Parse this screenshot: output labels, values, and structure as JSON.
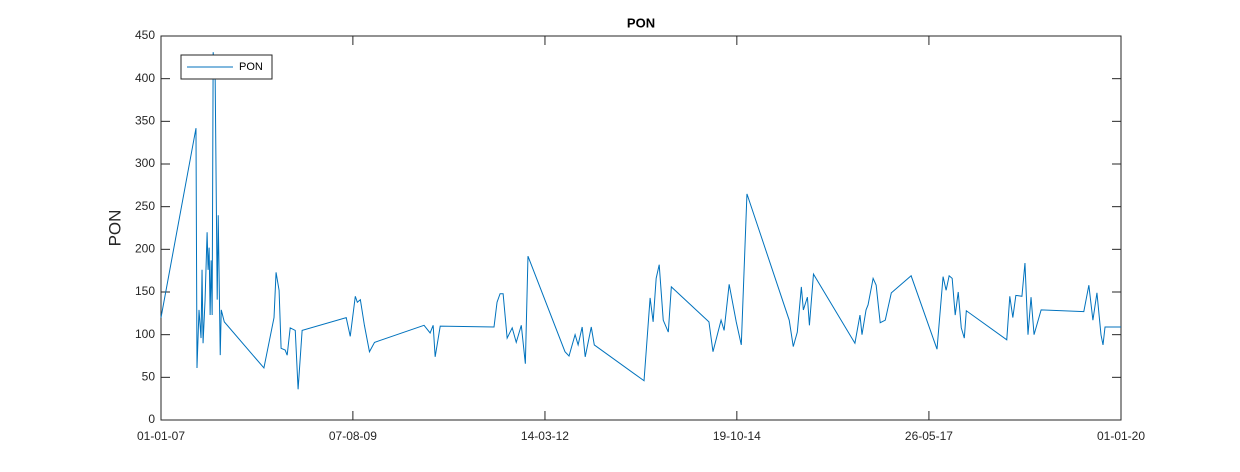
{
  "chart_data": {
    "type": "line",
    "title": "PON",
    "y_label": "PON",
    "x": [
      "2007-01-01",
      "2007-06-23",
      "2007-06-28",
      "2007-07-08",
      "2007-07-18",
      "2007-07-23",
      "2007-07-28",
      "2007-08-07",
      "2007-08-17",
      "2007-08-22",
      "2007-08-27",
      "2007-09-01",
      "2007-09-06",
      "2007-09-11",
      "2007-09-16",
      "2007-09-26",
      "2007-10-06",
      "2007-10-11",
      "2007-10-21",
      "2007-10-26",
      "2007-11-10",
      "2008-05-24",
      "2008-07-13",
      "2008-07-23",
      "2008-08-07",
      "2008-08-17",
      "2008-09-06",
      "2008-09-16",
      "2008-10-01",
      "2008-10-26",
      "2008-11-09",
      "2008-11-29",
      "2009-07-05",
      "2009-07-25",
      "2009-08-19",
      "2009-08-29",
      "2009-09-13",
      "2009-10-03",
      "2009-10-28",
      "2009-11-22",
      "2010-07-25",
      "2010-08-24",
      "2010-09-08",
      "2010-09-18",
      "2010-10-13",
      "2011-07-06",
      "2011-07-21",
      "2011-08-05",
      "2011-08-20",
      "2011-09-09",
      "2011-10-04",
      "2011-10-24",
      "2011-11-18",
      "2011-12-08",
      "2011-12-21",
      "2012-06-21",
      "2012-07-11",
      "2012-08-10",
      "2012-08-25",
      "2012-09-14",
      "2012-09-29",
      "2012-10-29",
      "2012-11-13",
      "2013-07-17",
      "2013-08-16",
      "2013-08-31",
      "2013-09-15",
      "2013-09-30",
      "2013-10-20",
      "2013-11-14",
      "2013-11-29",
      "2014-06-03",
      "2014-06-23",
      "2014-08-02",
      "2014-08-17",
      "2014-09-11",
      "2014-10-16",
      "2014-11-10",
      "2014-12-08",
      "2015-07-05",
      "2015-07-25",
      "2015-08-14",
      "2015-09-03",
      "2015-09-13",
      "2015-10-03",
      "2015-10-13",
      "2015-11-02",
      "2016-05-25",
      "2016-06-19",
      "2016-06-29",
      "2016-07-19",
      "2016-07-29",
      "2016-08-23",
      "2016-09-07",
      "2016-09-27",
      "2016-10-22",
      "2016-11-21",
      "2017-02-27",
      "2017-07-05",
      "2017-08-04",
      "2017-08-19",
      "2017-09-03",
      "2017-09-18",
      "2017-10-03",
      "2017-10-18",
      "2017-11-02",
      "2017-11-17",
      "2017-11-27",
      "2018-06-15",
      "2018-06-30",
      "2018-07-15",
      "2018-07-30",
      "2018-08-29",
      "2018-09-13",
      "2018-09-28",
      "2018-10-13",
      "2018-10-28",
      "2018-12-02",
      "2019-07-01",
      "2019-07-26",
      "2019-08-15",
      "2019-09-04",
      "2019-09-24",
      "2019-10-04",
      "2019-10-14",
      "2020-01-01"
    ],
    "series": [
      {
        "name": "PON",
        "color": "#0072bd",
        "values": [
          120,
          342,
          61,
          129,
          96,
          176,
          90,
          141,
          220,
          176,
          202,
          123,
          187,
          123,
          431,
          398,
          141,
          240,
          76,
          129,
          115,
          61,
          120,
          173,
          152,
          84,
          82,
          76,
          108,
          105,
          36,
          105,
          120,
          98,
          145,
          138,
          141,
          111,
          80,
          91,
          111,
          102,
          111,
          74,
          110,
          109,
          138,
          148,
          148,
          96,
          108,
          91,
          111,
          66,
          192,
          80,
          75,
          100,
          88,
          109,
          74,
          109,
          88,
          46,
          143,
          115,
          166,
          182,
          117,
          103,
          156,
          115,
          80,
          117,
          105,
          159,
          115,
          88,
          265,
          117,
          86,
          103,
          156,
          129,
          144,
          111,
          171,
          90,
          123,
          100,
          129,
          135,
          166,
          158,
          114,
          117,
          149,
          169,
          83,
          168,
          152,
          169,
          166,
          123,
          150,
          108,
          96,
          128,
          94,
          145,
          120,
          146,
          145,
          184,
          100,
          144,
          100,
          129,
          127,
          158,
          117,
          149,
          100,
          88,
          109,
          109
        ]
      }
    ],
    "xlim": [
      "2007-01-01",
      "2020-01-01"
    ],
    "xticks": [
      {
        "value": "2007-01-01",
        "label": "01-01-07"
      },
      {
        "value": "2009-08-07",
        "label": "07-08-09"
      },
      {
        "value": "2012-03-14",
        "label": "14-03-12"
      },
      {
        "value": "2014-10-19",
        "label": "19-10-14"
      },
      {
        "value": "2017-05-26",
        "label": "26-05-17"
      },
      {
        "value": "2020-01-01",
        "label": "01-01-20"
      }
    ],
    "ylim": [
      0,
      450
    ],
    "yticks": [
      0,
      50,
      100,
      150,
      200,
      250,
      300,
      350,
      400,
      450
    ],
    "grid": false,
    "legend": "northwest"
  }
}
